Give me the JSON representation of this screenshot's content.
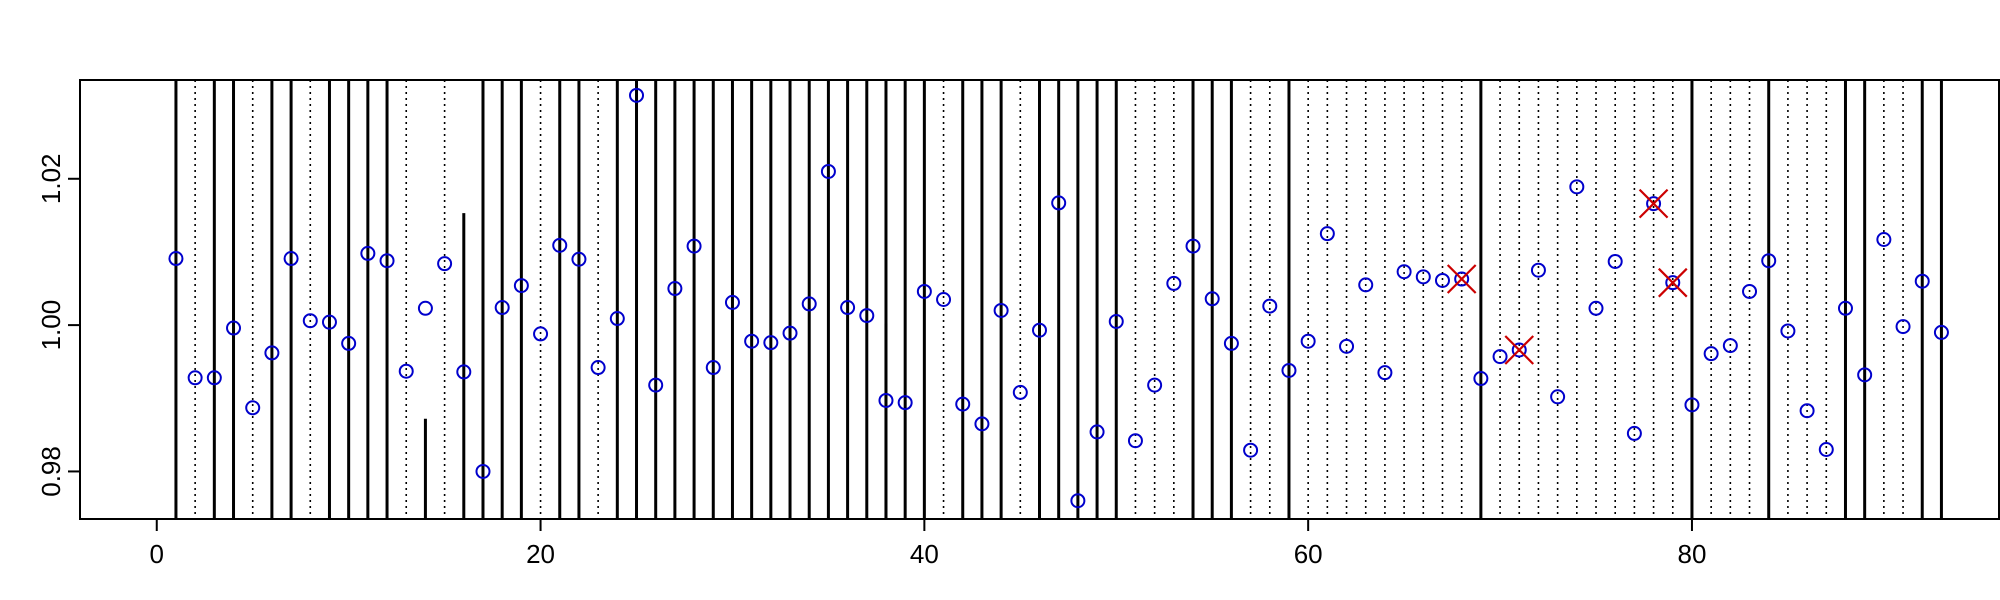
{
  "chart_data": {
    "type": "scatter",
    "title": "",
    "xlabel": "",
    "ylabel": "",
    "xlim": [
      -4,
      96
    ],
    "ylim": [
      0.9735,
      1.0335
    ],
    "x_ticks": [
      0,
      20,
      40,
      60,
      80
    ],
    "x_tick_labels": [
      "0",
      "20",
      "40",
      "60",
      "80"
    ],
    "y_ticks": [
      0.98,
      1.0,
      1.02
    ],
    "y_tick_labels": [
      "0.98",
      "1.00",
      "1.02"
    ],
    "grid": false,
    "point_color": "#0000cc",
    "flag_color": "#cc0000",
    "series": [
      {
        "marker": "circle",
        "x": [
          1,
          2,
          3,
          4,
          5,
          6,
          7,
          8,
          9,
          10,
          11,
          12,
          13,
          14,
          15,
          16,
          17,
          18,
          19,
          20,
          21,
          22,
          23,
          24,
          25,
          26,
          27,
          28,
          29,
          30,
          31,
          32,
          33,
          34,
          35,
          36,
          37,
          38,
          39,
          40,
          41,
          42,
          43,
          44,
          45,
          46,
          47,
          48,
          49,
          50,
          51,
          52,
          53,
          54,
          55,
          56,
          57,
          58,
          59,
          60,
          61,
          62,
          63,
          64,
          65,
          66,
          67,
          68,
          69,
          70,
          71,
          72,
          73,
          74,
          75,
          76,
          77,
          78,
          79,
          80,
          81,
          82,
          83,
          84,
          85,
          86,
          87,
          88,
          89,
          90,
          91,
          92,
          93
        ],
        "y": [
          1.0091,
          0.9928,
          0.9928,
          0.9996,
          0.9887,
          0.9962,
          1.0091,
          1.0006,
          1.0004,
          0.9975,
          1.0098,
          1.0088,
          0.9937,
          1.0023,
          1.0084,
          0.9936,
          0.98,
          1.0024,
          1.0054,
          0.9988,
          1.0109,
          1.009,
          0.9942,
          1.0009,
          1.0314,
          0.9918,
          1.005,
          1.0108,
          0.9942,
          1.0031,
          0.9978,
          0.9976,
          0.9989,
          1.0029,
          1.021,
          1.0024,
          1.0013,
          0.9897,
          0.9894,
          1.0046,
          1.0035,
          0.9892,
          0.9865,
          1.002,
          0.9908,
          0.9993,
          1.0167,
          0.976,
          0.9854,
          1.0005,
          0.9842,
          0.9918,
          1.0057,
          1.0108,
          1.0036,
          0.9975,
          0.9829,
          1.0026,
          0.9938,
          0.9978,
          1.0125,
          0.9971,
          1.0055,
          0.9935,
          1.0073,
          1.0066,
          1.0061,
          1.0063,
          0.9927,
          0.9957,
          0.9966,
          1.0075,
          0.9902,
          1.0189,
          1.0023,
          1.0087,
          0.9852,
          1.0166,
          1.0058,
          0.9891,
          0.9961,
          0.9972,
          1.0046,
          1.0088,
          0.9992,
          0.9883,
          0.983,
          1.0023,
          0.9932,
          1.0117,
          0.9998,
          1.006,
          0.999
        ]
      },
      {
        "marker": "x",
        "x": [
          68,
          71,
          78,
          79
        ],
        "y": [
          1.0063,
          0.9966,
          1.0166,
          1.0058
        ]
      }
    ],
    "vertical_lines": {
      "solid_full": [
        1,
        3,
        4,
        6,
        7,
        9,
        10,
        11,
        12,
        17,
        18,
        19,
        21,
        22,
        24,
        25,
        26,
        27,
        28,
        29,
        30,
        31,
        32,
        33,
        34,
        35,
        36,
        37,
        38,
        39,
        40,
        42,
        43,
        44,
        46,
        47,
        48,
        49,
        50,
        54,
        55,
        56,
        59,
        69,
        80,
        84,
        88,
        89,
        92,
        93
      ],
      "solid_partial": [
        {
          "x": 14,
          "top": 0.9872
        },
        {
          "x": 16,
          "top": 1.0153
        },
        {
          "x": 38,
          "top": 1.0002
        }
      ],
      "dotted": [
        2,
        5,
        8,
        13,
        15,
        20,
        23,
        41,
        45,
        51,
        52,
        53,
        57,
        58,
        60,
        61,
        62,
        63,
        64,
        65,
        66,
        67,
        68,
        70,
        71,
        72,
        73,
        74,
        75,
        76,
        77,
        78,
        79,
        81,
        82,
        83,
        85,
        86,
        87,
        90,
        91
      ]
    }
  }
}
